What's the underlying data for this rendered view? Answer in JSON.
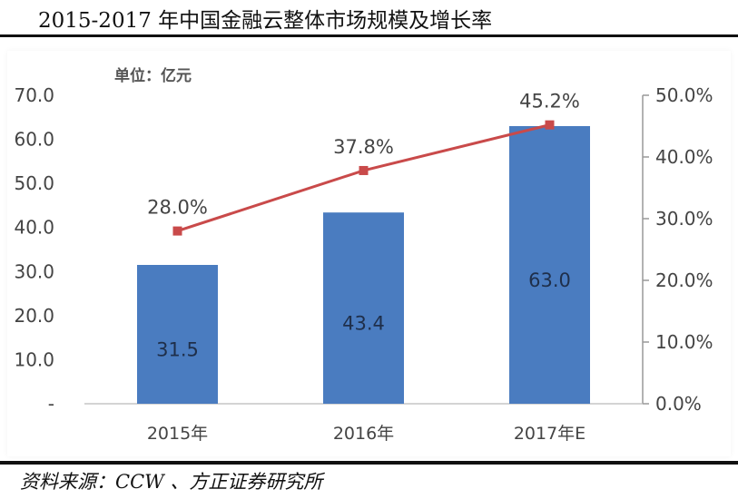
{
  "page": {
    "title": "2015-2017 年中国金融云整体市场规模及增长率",
    "source": "资料来源：CCW 、方正证券研究所"
  },
  "chart_data": {
    "type": "bar",
    "unit_label": "单位：亿元",
    "categories": [
      "2015年",
      "2016年",
      "2017年E"
    ],
    "series": [
      {
        "type": "bar",
        "axis": "left",
        "values": [
          31.5,
          43.4,
          63.0
        ],
        "labels": [
          "31.5",
          "43.4",
          "63.0"
        ],
        "color": "#4a7cc0"
      },
      {
        "type": "line",
        "axis": "right",
        "values": [
          28.0,
          37.8,
          45.2
        ],
        "labels": [
          "28.0%",
          "37.8%",
          "45.2%"
        ],
        "color": "#c94a4a"
      }
    ],
    "y_left": {
      "min": 0,
      "max": 70,
      "ticks": [
        "-",
        "10.0",
        "20.0",
        "30.0",
        "40.0",
        "50.0",
        "60.0",
        "70.0"
      ]
    },
    "y_right": {
      "min": 0,
      "max": 50,
      "ticks": [
        "0.0%",
        "10.0%",
        "20.0%",
        "30.0%",
        "40.0%",
        "50.0%"
      ]
    },
    "grid": false,
    "legend": "none"
  }
}
